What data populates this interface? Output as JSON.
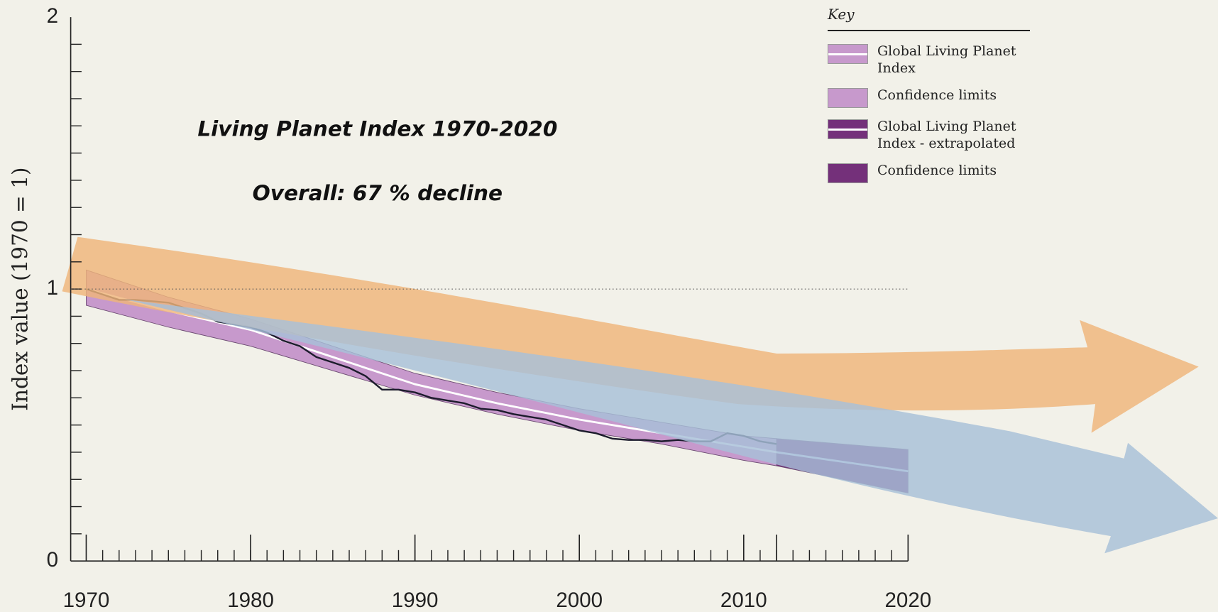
{
  "chart_data": {
    "type": "line",
    "title": "Living Planet Index 1970-2020",
    "subtitle": "Overall: 67 % decline",
    "ylabel": "Index value (1970 = 1)",
    "legend_title": "Key",
    "legend": "upper right",
    "xlim": [
      1970,
      2020
    ],
    "xticks": [
      1970,
      1980,
      1990,
      2000,
      2010,
      2020
    ],
    "xminor": 1,
    "ylim": [
      0,
      2
    ],
    "yticks": [
      0,
      1,
      2
    ],
    "yminor": 0.1,
    "hline": 1,
    "series": [
      {
        "name": "Global Living Planet Index",
        "kind": "line",
        "color": "#ffffff",
        "x": [
          1970,
          1975,
          1980,
          1985,
          1990,
          1995,
          2000,
          2005,
          2010,
          2012
        ],
        "values": [
          1.0,
          0.92,
          0.85,
          0.75,
          0.65,
          0.58,
          0.52,
          0.47,
          0.42,
          0.4
        ]
      },
      {
        "name": "Confidence limits",
        "kind": "band",
        "color": "#c799cc",
        "x": [
          1970,
          1975,
          1980,
          1985,
          1990,
          1995,
          2000,
          2005,
          2010,
          2012
        ],
        "values": [
          1.07,
          0.97,
          0.89,
          0.79,
          0.69,
          0.62,
          0.56,
          0.51,
          0.46,
          0.45
        ],
        "lower": [
          0.94,
          0.86,
          0.79,
          0.7,
          0.61,
          0.54,
          0.48,
          0.43,
          0.37,
          0.35
        ]
      },
      {
        "name": "Global Living Planet Index - extrapolated",
        "kind": "line",
        "color": "#d9def5",
        "x": [
          2012,
          2016,
          2020
        ],
        "values": [
          0.4,
          0.365,
          0.33
        ]
      },
      {
        "name": "Confidence limits",
        "kind": "band",
        "color": "#74307a",
        "x": [
          2012,
          2016,
          2020
        ],
        "values": [
          0.45,
          0.43,
          0.41
        ],
        "lower": [
          0.35,
          0.3,
          0.25
        ]
      },
      {
        "kind": "line",
        "color": "#1c1c2c",
        "x": [
          1970,
          1971,
          1972,
          1973,
          1974,
          1975,
          1976,
          1977,
          1978,
          1979,
          1980,
          1981,
          1982,
          1983,
          1984,
          1985,
          1986,
          1987,
          1988,
          1989,
          1990,
          1991,
          1992,
          1993,
          1994,
          1995,
          1996,
          1997,
          1998,
          1999,
          2000,
          2001,
          2002,
          2003,
          2004,
          2005,
          2006,
          2007,
          2008,
          2009,
          2010,
          2011,
          2012
        ],
        "values": [
          1.0,
          0.98,
          0.96,
          0.96,
          0.955,
          0.95,
          0.93,
          0.91,
          0.88,
          0.87,
          0.86,
          0.84,
          0.81,
          0.79,
          0.75,
          0.73,
          0.71,
          0.68,
          0.63,
          0.63,
          0.62,
          0.6,
          0.59,
          0.58,
          0.56,
          0.555,
          0.54,
          0.53,
          0.52,
          0.5,
          0.48,
          0.47,
          0.45,
          0.445,
          0.445,
          0.44,
          0.445,
          0.44,
          0.44,
          0.47,
          0.46,
          0.44,
          0.43
        ]
      }
    ]
  }
}
